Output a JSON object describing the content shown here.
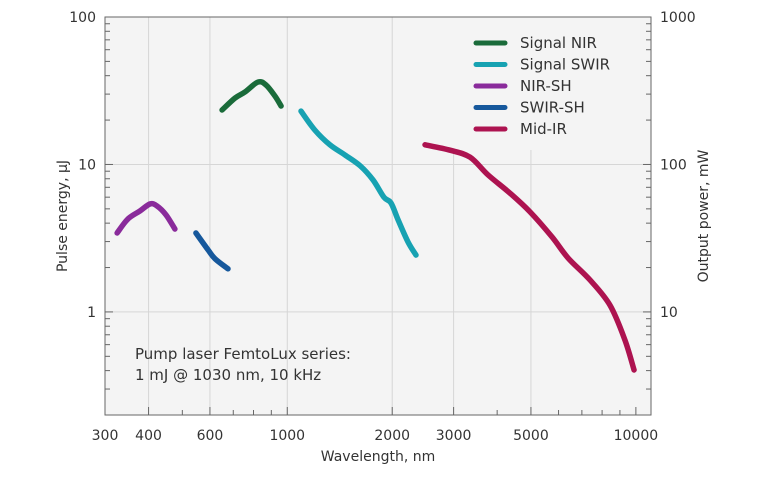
{
  "chart_data": {
    "type": "line",
    "xlabel": "Wavelength, nm",
    "ylabel": "Pulse energy, μJ",
    "y2label": "Output power, mW",
    "xscale": "log",
    "yscale": "log",
    "xlim": [
      300,
      11000
    ],
    "ylim": [
      0.2,
      100
    ],
    "y2lim": [
      2,
      1000
    ],
    "xticks": [
      300,
      400,
      600,
      1000,
      2000,
      3000,
      5000,
      10000
    ],
    "yticks": [
      1,
      10,
      100
    ],
    "y2ticks": [
      10,
      100,
      1000
    ],
    "grid": true,
    "legend_position": "top-right",
    "annotation": [
      "Pump laser FemtoLux series:",
      "1 mJ @ 1030 nm, 10 kHz"
    ],
    "series": [
      {
        "name": "Signal NIR",
        "color": "#1a6b3a",
        "x": [
          650,
          708,
          756,
          824,
          869,
          922,
          960
        ],
        "y": [
          23.4,
          28.2,
          31.0,
          36.2,
          34.6,
          29.1,
          24.9
        ]
      },
      {
        "name": "Signal SWIR",
        "color": "#17a2b2",
        "x": [
          1095,
          1200,
          1325,
          1464,
          1618,
          1762,
          1893,
          1984,
          2080,
          2220,
          2340
        ],
        "y": [
          23.0,
          17.1,
          13.6,
          11.6,
          9.8,
          7.85,
          6.0,
          5.48,
          4.2,
          2.98,
          2.43
        ]
      },
      {
        "name": "NIR-SH",
        "color": "#8a2b9b",
        "x": [
          325,
          349,
          378,
          404,
          423,
          449,
          476
        ],
        "y": [
          3.43,
          4.27,
          4.84,
          5.4,
          5.23,
          4.55,
          3.65
        ]
      },
      {
        "name": "SWIR-SH",
        "color": "#16589c",
        "x": [
          547,
          593,
          621,
          676
        ],
        "y": [
          3.43,
          2.63,
          2.29,
          1.96
        ]
      },
      {
        "name": "Mid-IR",
        "color": "#ad1350",
        "x": [
          2484,
          2930,
          3345,
          3765,
          4350,
          4970,
          5750,
          6390,
          7380,
          8430,
          9300,
          9880
        ],
        "y": [
          13.6,
          12.5,
          11.2,
          8.5,
          6.4,
          4.77,
          3.22,
          2.32,
          1.65,
          1.11,
          0.646,
          0.404
        ]
      }
    ]
  }
}
